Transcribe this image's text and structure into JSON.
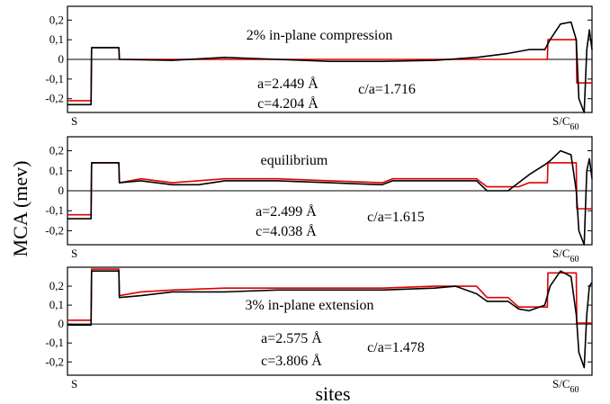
{
  "chart_data": {
    "type": "line",
    "ylabel": "MCA (mev)",
    "xlabel": "sites",
    "y_ticks": [
      {
        "value": 0.2,
        "label": "0,2"
      },
      {
        "value": 0.1,
        "label": "0,1"
      },
      {
        "value": 0,
        "label": "0"
      },
      {
        "value": -0.1,
        "label": "-0,1"
      },
      {
        "value": -0.2,
        "label": "-0,2"
      }
    ],
    "x_start_label": "S",
    "x_end_label": "S/C",
    "x_end_subscript": "60",
    "series_colors": {
      "black": "#000000",
      "red": "#e00000"
    },
    "panels": [
      {
        "title": "2% in-plane compression",
        "a_label": "a=2.449 Å",
        "c_label": "c=4.204 Å",
        "ratio_label": "c/a=1.716",
        "ylim": [
          -0.27,
          0.27
        ],
        "xlim": [
          0,
          100
        ],
        "black": [
          [
            0,
            -0.23
          ],
          [
            4.5,
            -0.23
          ],
          [
            4.6,
            0.06
          ],
          [
            9.8,
            0.06
          ],
          [
            9.9,
            0.0
          ],
          [
            20,
            -0.005
          ],
          [
            30,
            0.01
          ],
          [
            40,
            0.0
          ],
          [
            50,
            -0.01
          ],
          [
            60,
            -0.01
          ],
          [
            70,
            -0.005
          ],
          [
            78,
            0.01
          ],
          [
            84,
            0.03
          ],
          [
            88,
            0.05
          ],
          [
            91,
            0.05
          ],
          [
            92,
            0.1
          ],
          [
            94,
            0.18
          ],
          [
            96,
            0.19
          ],
          [
            97,
            0.1
          ],
          [
            97.5,
            -0.2
          ],
          [
            98.5,
            -0.27
          ],
          [
            99,
            0.05
          ],
          [
            99.5,
            0.15
          ],
          [
            100,
            0.05
          ]
        ],
        "red": [
          [
            0,
            -0.21
          ],
          [
            4.5,
            -0.21
          ],
          [
            4.6,
            0.06
          ],
          [
            9.8,
            0.06
          ],
          [
            9.9,
            0.0
          ],
          [
            60,
            0.0
          ],
          [
            88,
            0.0
          ],
          [
            91.5,
            0.0
          ],
          [
            91.6,
            0.1
          ],
          [
            97,
            0.1
          ],
          [
            97.1,
            -0.12
          ],
          [
            100,
            -0.12
          ]
        ]
      },
      {
        "title": "equilibrium",
        "a_label": "a=2.499 Å",
        "c_label": "c=4.038 Å",
        "ratio_label": "c/a=1.615",
        "ylim": [
          -0.27,
          0.27
        ],
        "xlim": [
          0,
          100
        ],
        "black": [
          [
            0,
            -0.14
          ],
          [
            4.5,
            -0.14
          ],
          [
            4.6,
            0.14
          ],
          [
            9.8,
            0.14
          ],
          [
            9.9,
            0.04
          ],
          [
            14,
            0.05
          ],
          [
            20,
            0.03
          ],
          [
            25,
            0.03
          ],
          [
            30,
            0.05
          ],
          [
            40,
            0.05
          ],
          [
            50,
            0.04
          ],
          [
            60,
            0.03
          ],
          [
            62,
            0.05
          ],
          [
            70,
            0.05
          ],
          [
            75,
            0.05
          ],
          [
            78,
            0.05
          ],
          [
            80,
            0.0
          ],
          [
            84,
            0.0
          ],
          [
            86,
            0.04
          ],
          [
            88,
            0.08
          ],
          [
            91,
            0.13
          ],
          [
            92,
            0.15
          ],
          [
            94,
            0.2
          ],
          [
            96,
            0.18
          ],
          [
            97,
            0.0
          ],
          [
            97.5,
            -0.2
          ],
          [
            98.5,
            -0.27
          ],
          [
            99,
            0.1
          ],
          [
            99.5,
            0.16
          ],
          [
            100,
            0.06
          ]
        ],
        "red": [
          [
            0,
            -0.12
          ],
          [
            4.5,
            -0.12
          ],
          [
            4.6,
            0.14
          ],
          [
            9.8,
            0.14
          ],
          [
            9.9,
            0.04
          ],
          [
            14,
            0.06
          ],
          [
            20,
            0.04
          ],
          [
            30,
            0.06
          ],
          [
            40,
            0.06
          ],
          [
            50,
            0.05
          ],
          [
            60,
            0.04
          ],
          [
            62,
            0.06
          ],
          [
            78,
            0.06
          ],
          [
            80,
            0.02
          ],
          [
            86,
            0.02
          ],
          [
            88,
            0.04
          ],
          [
            91.5,
            0.04
          ],
          [
            91.6,
            0.14
          ],
          [
            97,
            0.14
          ],
          [
            97.1,
            -0.09
          ],
          [
            100,
            -0.09
          ]
        ]
      },
      {
        "title": "3% in-plane extension",
        "a_label": "a=2.575 Å",
        "c_label": "c=3.806 Å",
        "ratio_label": "c/a=1.478",
        "ylim": [
          -0.27,
          0.3
        ],
        "xlim": [
          0,
          100
        ],
        "black": [
          [
            0,
            -0.005
          ],
          [
            4.5,
            -0.005
          ],
          [
            4.6,
            0.28
          ],
          [
            9.8,
            0.28
          ],
          [
            9.9,
            0.14
          ],
          [
            14,
            0.15
          ],
          [
            20,
            0.17
          ],
          [
            30,
            0.17
          ],
          [
            40,
            0.18
          ],
          [
            50,
            0.18
          ],
          [
            60,
            0.18
          ],
          [
            70,
            0.19
          ],
          [
            74,
            0.2
          ],
          [
            78,
            0.16
          ],
          [
            80,
            0.12
          ],
          [
            84,
            0.12
          ],
          [
            86,
            0.08
          ],
          [
            88,
            0.07
          ],
          [
            91,
            0.1
          ],
          [
            92,
            0.2
          ],
          [
            94,
            0.28
          ],
          [
            96,
            0.25
          ],
          [
            97,
            0.05
          ],
          [
            97.5,
            -0.15
          ],
          [
            98.5,
            -0.23
          ],
          [
            99,
            0.05
          ],
          [
            99.5,
            0.2
          ],
          [
            100,
            0.22
          ]
        ],
        "red": [
          [
            0,
            0.02
          ],
          [
            4.5,
            0.02
          ],
          [
            4.6,
            0.29
          ],
          [
            9.8,
            0.29
          ],
          [
            9.9,
            0.15
          ],
          [
            14,
            0.17
          ],
          [
            20,
            0.18
          ],
          [
            30,
            0.19
          ],
          [
            40,
            0.19
          ],
          [
            50,
            0.19
          ],
          [
            60,
            0.19
          ],
          [
            70,
            0.2
          ],
          [
            78,
            0.2
          ],
          [
            80,
            0.14
          ],
          [
            84,
            0.14
          ],
          [
            86,
            0.09
          ],
          [
            91.5,
            0.09
          ],
          [
            91.6,
            0.27
          ],
          [
            97,
            0.27
          ],
          [
            97.1,
            0.005
          ],
          [
            100,
            0.005
          ]
        ]
      }
    ]
  }
}
